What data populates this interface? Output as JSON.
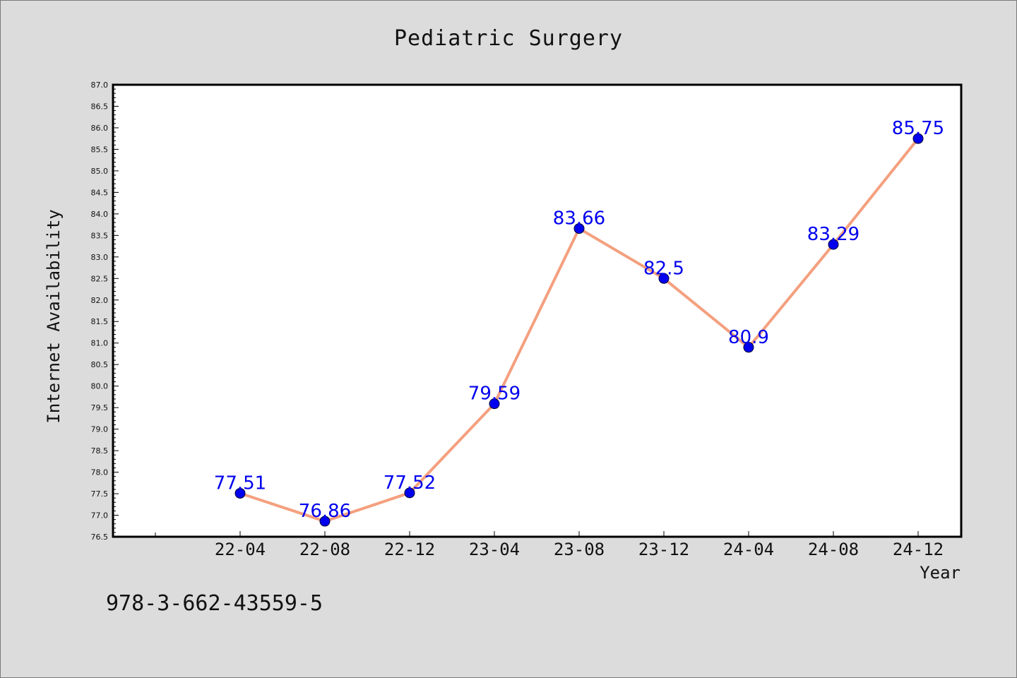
{
  "chart_data": {
    "type": "line",
    "title": "Pediatric Surgery",
    "xlabel": "Year",
    "ylabel": "Internet Availability",
    "categories": [
      "22-04",
      "22-08",
      "22-12",
      "23-04",
      "23-08",
      "23-12",
      "24-04",
      "24-08",
      "24-12"
    ],
    "values": [
      77.51,
      76.86,
      77.52,
      79.59,
      83.66,
      82.5,
      80.9,
      83.29,
      85.75
    ],
    "data_labels": [
      "77.51",
      "76.86",
      "77.52",
      "79.59",
      "83.66",
      "82.5",
      "80.9",
      "83.29",
      "85.75"
    ],
    "ylim": [
      76.5,
      87.0
    ],
    "ytick_step": 0.5,
    "grid": false,
    "line_color": "#f4a07f",
    "marker_color": "#0000ee",
    "label_color": "#0000ee"
  },
  "footer": {
    "code": "978-3-662-43559-5"
  }
}
